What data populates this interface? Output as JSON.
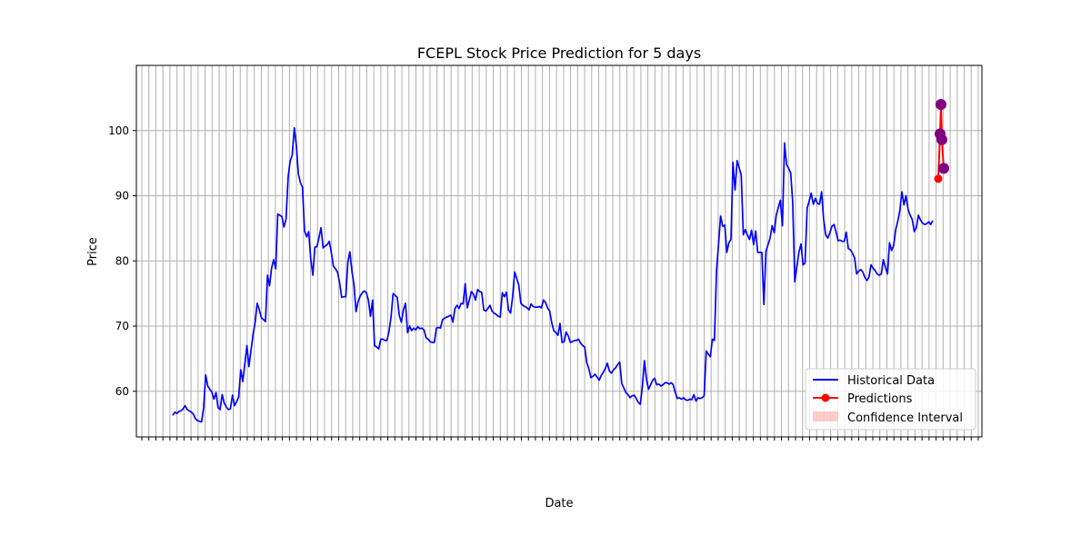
{
  "chart_data": {
    "type": "line",
    "title": "FCEPL Stock Price Prediction for 5 days",
    "xlabel": "Date",
    "ylabel": "Price",
    "ylim": [
      53,
      110
    ],
    "yticks": [
      60,
      70,
      80,
      90,
      100
    ],
    "grid": true,
    "legend_placement": "lower-right",
    "x_tick_count": 120,
    "legend": [
      "Historical Data",
      "Predictions",
      "Confidence Interval"
    ],
    "colors": {
      "historical": "#0000ff",
      "predictions": "#ff0000",
      "prediction_markers": "#800080",
      "confidence": "#ff9999",
      "grid": "#b0b0b0"
    },
    "series": [
      {
        "name": "Historical Data",
        "values": [
          56.3,
          56.8,
          56.6,
          56.9,
          57.0,
          57.3,
          57.8,
          57.2,
          57.0,
          56.8,
          56.5,
          55.8,
          55.5,
          55.4,
          55.3,
          57.5,
          62.5,
          60.8,
          60.3,
          59.9,
          58.8,
          59.8,
          57.5,
          57.2,
          59.5,
          58.2,
          57.6,
          57.2,
          57.3,
          59.4,
          57.8,
          58.4,
          59.1,
          63.3,
          61.5,
          64.2,
          67.0,
          63.8,
          66.3,
          68.8,
          70.5,
          73.5,
          72.5,
          71.3,
          71.0,
          70.7,
          77.8,
          76.2,
          78.9,
          80.2,
          78.8,
          87.2,
          87.0,
          86.8,
          85.2,
          86.4,
          92.8,
          95.3,
          96.2,
          100.4,
          97.8,
          93.3,
          92.0,
          91.3,
          84.6,
          83.7,
          84.5,
          80.3,
          77.8,
          82.1,
          82.2,
          83.6,
          85.1,
          82.0,
          82.3,
          82.5,
          83.0,
          81.3,
          79.2,
          78.8,
          78.3,
          76.7,
          74.4,
          74.5,
          74.5,
          79.8,
          81.4,
          78.4,
          76.3,
          72.2,
          73.8,
          74.6,
          75.1,
          75.4,
          75.1,
          74.0,
          71.5,
          74.0,
          67.0,
          66.8,
          66.5,
          68.0,
          68.0,
          67.8,
          67.8,
          69.2,
          71.5,
          75.0,
          74.7,
          74.4,
          71.6,
          70.6,
          72.5,
          73.5,
          69.0,
          70.0,
          69.3,
          69.7,
          69.4,
          69.9,
          69.6,
          69.7,
          69.4,
          68.2,
          68.0,
          67.6,
          67.5,
          67.5,
          69.7,
          69.8,
          69.7,
          71.0,
          71.2,
          71.4,
          71.5,
          71.7,
          70.6,
          72.7,
          73.2,
          72.7,
          73.5,
          73.4,
          76.5,
          72.8,
          74.0,
          75.3,
          74.9,
          74.0,
          75.6,
          75.3,
          75.2,
          72.5,
          72.3,
          72.7,
          73.2,
          72.3,
          72.0,
          71.8,
          71.5,
          71.4,
          75.1,
          74.5,
          75.2,
          72.5,
          72.0,
          74.5,
          78.3,
          77.3,
          76.3,
          73.5,
          73.2,
          73.0,
          72.8,
          72.5,
          73.4,
          73.0,
          72.9,
          72.9,
          73.0,
          72.8,
          74.0,
          73.6,
          72.8,
          72.3,
          70.5,
          69.3,
          69.0,
          68.6,
          70.4,
          67.5,
          67.6,
          69.1,
          68.5,
          67.5,
          67.6,
          67.8,
          67.8,
          68.0,
          67.4,
          67.0,
          66.8,
          64.4,
          63.5,
          62.1,
          62.3,
          62.6,
          62.2,
          61.7,
          62.4,
          62.9,
          63.5,
          64.3,
          63.1,
          62.8,
          63.3,
          63.6,
          64.1,
          64.5,
          61.2,
          60.5,
          59.8,
          59.5,
          59.0,
          59.3,
          59.4,
          58.9,
          58.3,
          58.0,
          60.8,
          64.7,
          61.8,
          60.3,
          61.0,
          61.7,
          62.0,
          61.0,
          61.1,
          60.8,
          61.0,
          61.3,
          61.3,
          61.1,
          61.3,
          61.0,
          59.8,
          58.9,
          59.0,
          58.8,
          59.0,
          58.7,
          58.6,
          58.8,
          58.7,
          59.5,
          58.5,
          59.0,
          58.9,
          59.0,
          59.3,
          66.2,
          65.7,
          65.3,
          68.0,
          67.8,
          78.5,
          82.7,
          86.9,
          85.3,
          85.5,
          81.3,
          82.8,
          83.3,
          95.1,
          90.9,
          95.4,
          94.3,
          93.2,
          84.0,
          84.8,
          84.0,
          83.3,
          84.7,
          82.5,
          84.6,
          81.3,
          81.3,
          81.3,
          73.3,
          81.5,
          82.5,
          83.5,
          85.4,
          84.3,
          87.0,
          88.2,
          89.3,
          85.4,
          98.1,
          94.8,
          94.2,
          93.5,
          89.0,
          76.8,
          79.1,
          81.3,
          82.6,
          79.4,
          79.7,
          88.1,
          89.2,
          90.4,
          88.7,
          89.6,
          88.8,
          88.7,
          90.6,
          86.4,
          84.0,
          83.5,
          84.3,
          85.3,
          85.6,
          84.5,
          83.1,
          83.2,
          83.0,
          83.0,
          84.4,
          81.9,
          81.7,
          81.2,
          80.5,
          78.0,
          78.4,
          78.7,
          78.3,
          77.5,
          77.0,
          77.5,
          79.4,
          78.9,
          78.5,
          78.0,
          77.8,
          78.0,
          80.2,
          79.0,
          78.0,
          82.8,
          81.6,
          82.4,
          84.8,
          86.1,
          87.8,
          90.6,
          88.6,
          90.0,
          87.9,
          87.0,
          86.4,
          84.5,
          85.1,
          87.0,
          86.3,
          85.8,
          85.6,
          85.7,
          86.0,
          85.6,
          86.2
        ]
      },
      {
        "name": "Predictions",
        "values": [
          92.6,
          99.5,
          104.0,
          98.6,
          94.2
        ],
        "lower": [
          91.5,
          98.2,
          101.5,
          96.5,
          92.4
        ],
        "upper": [
          93.8,
          101.2,
          107.8,
          100.8,
          96.2
        ]
      }
    ]
  }
}
